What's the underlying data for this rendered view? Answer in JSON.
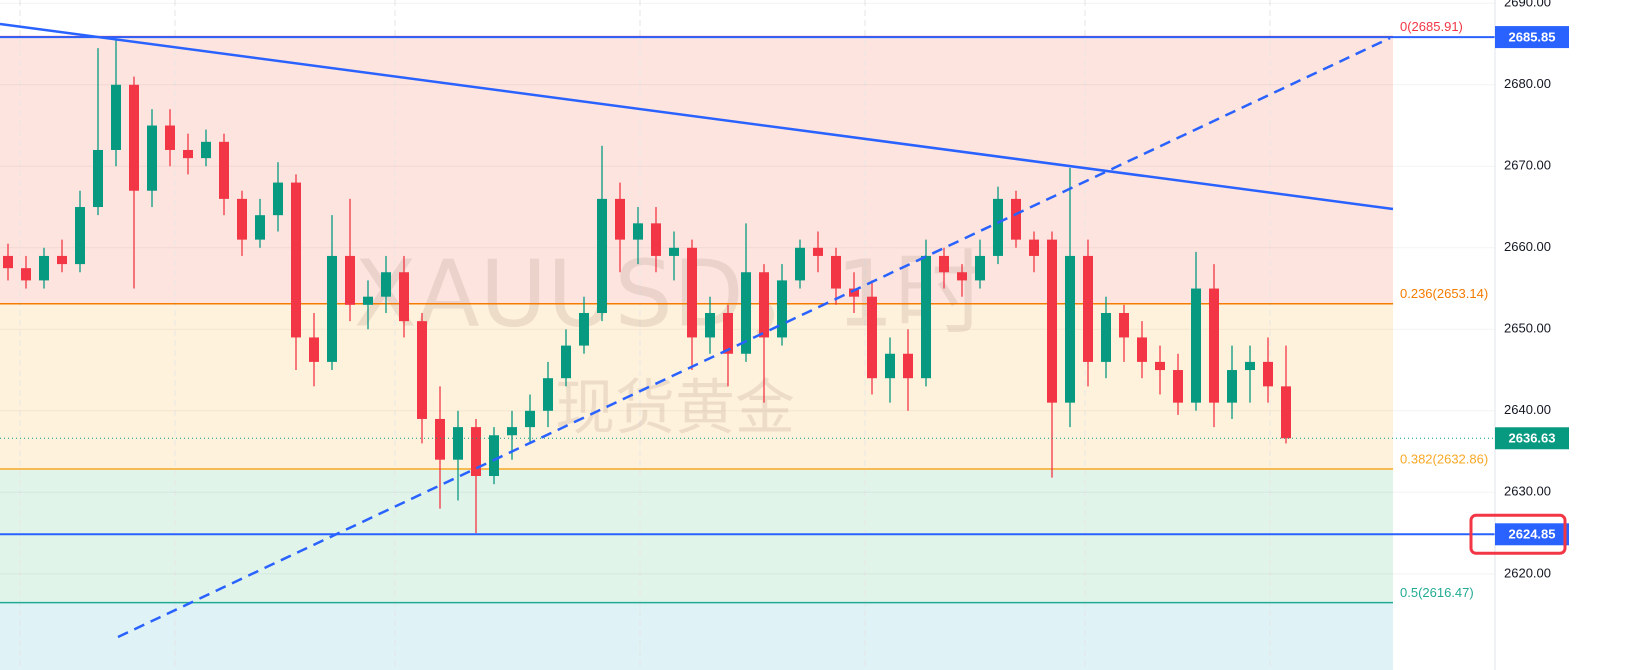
{
  "chart_data": {
    "type": "candlestick",
    "ylim": [
      2608.2,
      2690.4
    ],
    "yticks": [
      {
        "value": 2620,
        "label": "2620.00"
      },
      {
        "value": 2630,
        "label": "2630.00"
      },
      {
        "value": 2640,
        "label": "2640.00"
      },
      {
        "value": 2650,
        "label": "2650.00"
      },
      {
        "value": 2660,
        "label": "2660.00"
      },
      {
        "value": 2670,
        "label": "2670.00"
      },
      {
        "value": 2680,
        "label": "2680.00"
      },
      {
        "value": 2690,
        "label": "2690.00"
      }
    ],
    "grid": true,
    "up_color": "#089981",
    "down_color": "#f23645",
    "watermark": {
      "symbol": "XAUUSD，1时",
      "name": "现货黄金"
    },
    "fib_levels": [
      {
        "value": 2685.91,
        "label": "0(2685.91)",
        "color": "#f23645",
        "zone_color": "#fde4df"
      },
      {
        "value": 2653.14,
        "label": "0.236(2653.14)",
        "color": "#f57c00",
        "zone_color": "#fff2dc"
      },
      {
        "value": 2632.86,
        "label": "0.382(2632.86)",
        "color": "#f9a825",
        "zone_color": "#e1f4ea"
      },
      {
        "value": 2616.47,
        "label": "0.5(2616.47)",
        "color": "#22ab94",
        "zone_color": "#dff3f6"
      }
    ],
    "price_lines": [
      {
        "value": 2685.85,
        "color": "#2962ff",
        "style": "solid",
        "highlighted": false
      },
      {
        "value": 2636.63,
        "color": "#089981",
        "style": "dotted",
        "highlighted": false
      },
      {
        "value": 2624.85,
        "color": "#2962ff",
        "style": "solid",
        "highlighted": true
      }
    ],
    "ohlc": [
      [
        2659,
        2660.5,
        2656,
        2657.5
      ],
      [
        2657.5,
        2659,
        2655,
        2656
      ],
      [
        2656,
        2660,
        2655,
        2659
      ],
      [
        2659,
        2661,
        2657,
        2658
      ],
      [
        2658,
        2667,
        2657,
        2665
      ],
      [
        2665,
        2684.5,
        2664,
        2672
      ],
      [
        2672,
        2685.5,
        2670,
        2680
      ],
      [
        2680,
        2681,
        2655,
        2667
      ],
      [
        2667,
        2677,
        2665,
        2675
      ],
      [
        2675,
        2677,
        2670,
        2672
      ],
      [
        2672,
        2674,
        2669,
        2671
      ],
      [
        2671,
        2674.5,
        2670,
        2673
      ],
      [
        2673,
        2674,
        2664,
        2666
      ],
      [
        2666,
        2667,
        2659,
        2661
      ],
      [
        2661,
        2666,
        2660,
        2664
      ],
      [
        2664,
        2670.5,
        2662,
        2668
      ],
      [
        2668,
        2669,
        2645,
        2649
      ],
      [
        2649,
        2652,
        2643,
        2646
      ],
      [
        2646,
        2664,
        2645,
        2659
      ],
      [
        2659,
        2666,
        2651,
        2653
      ],
      [
        2653,
        2656,
        2650,
        2654
      ],
      [
        2654,
        2659,
        2652,
        2657
      ],
      [
        2657,
        2659,
        2649,
        2651
      ],
      [
        2651,
        2652,
        2636,
        2639
      ],
      [
        2639,
        2643,
        2628,
        2634
      ],
      [
        2634,
        2640,
        2629,
        2638
      ],
      [
        2638,
        2639,
        2625,
        2632
      ],
      [
        2632,
        2638,
        2631,
        2637
      ],
      [
        2637,
        2640,
        2634,
        2638
      ],
      [
        2638,
        2642,
        2636,
        2640
      ],
      [
        2640,
        2646,
        2638,
        2644
      ],
      [
        2644,
        2650,
        2643,
        2648
      ],
      [
        2648,
        2654,
        2647,
        2652
      ],
      [
        2652,
        2672.5,
        2651,
        2666
      ],
      [
        2666,
        2668,
        2657,
        2661
      ],
      [
        2661,
        2665,
        2658,
        2663
      ],
      [
        2663,
        2665,
        2657,
        2659
      ],
      [
        2659,
        2662,
        2656,
        2660
      ],
      [
        2660,
        2661,
        2645,
        2649
      ],
      [
        2649,
        2654,
        2647,
        2652
      ],
      [
        2652,
        2653,
        2643,
        2647
      ],
      [
        2647,
        2663,
        2646,
        2657
      ],
      [
        2657,
        2658,
        2641,
        2649
      ],
      [
        2649,
        2658,
        2648,
        2656
      ],
      [
        2656,
        2661,
        2655,
        2660
      ],
      [
        2660,
        2662,
        2657,
        2659
      ],
      [
        2659,
        2660,
        2653,
        2655
      ],
      [
        2655,
        2657,
        2652,
        2654
      ],
      [
        2654,
        2656,
        2642,
        2644
      ],
      [
        2644,
        2649,
        2641,
        2647
      ],
      [
        2647,
        2650,
        2640,
        2644
      ],
      [
        2644,
        2661,
        2643,
        2659
      ],
      [
        2659,
        2660,
        2655,
        2657
      ],
      [
        2657,
        2658,
        2654,
        2656
      ],
      [
        2656,
        2661,
        2655,
        2659
      ],
      [
        2659,
        2667.5,
        2658,
        2666
      ],
      [
        2666,
        2667,
        2660,
        2661
      ],
      [
        2661,
        2662,
        2657,
        2659
      ],
      [
        2661,
        2662,
        2631.8,
        2641
      ],
      [
        2641,
        2669.8,
        2638,
        2659
      ],
      [
        2659,
        2661,
        2643,
        2646
      ],
      [
        2646,
        2654,
        2644,
        2652
      ],
      [
        2652,
        2653,
        2646,
        2649
      ],
      [
        2649,
        2651,
        2644,
        2646
      ],
      [
        2646,
        2648,
        2642,
        2645
      ],
      [
        2645,
        2647,
        2639.5,
        2641
      ],
      [
        2641,
        2659.5,
        2640,
        2655
      ],
      [
        2655,
        2658,
        2638,
        2641
      ],
      [
        2641,
        2648,
        2639,
        2645
      ],
      [
        2645,
        2648,
        2641,
        2646
      ],
      [
        2646,
        2649,
        2641,
        2643
      ],
      [
        2643,
        2648,
        2636,
        2636.63
      ]
    ]
  }
}
